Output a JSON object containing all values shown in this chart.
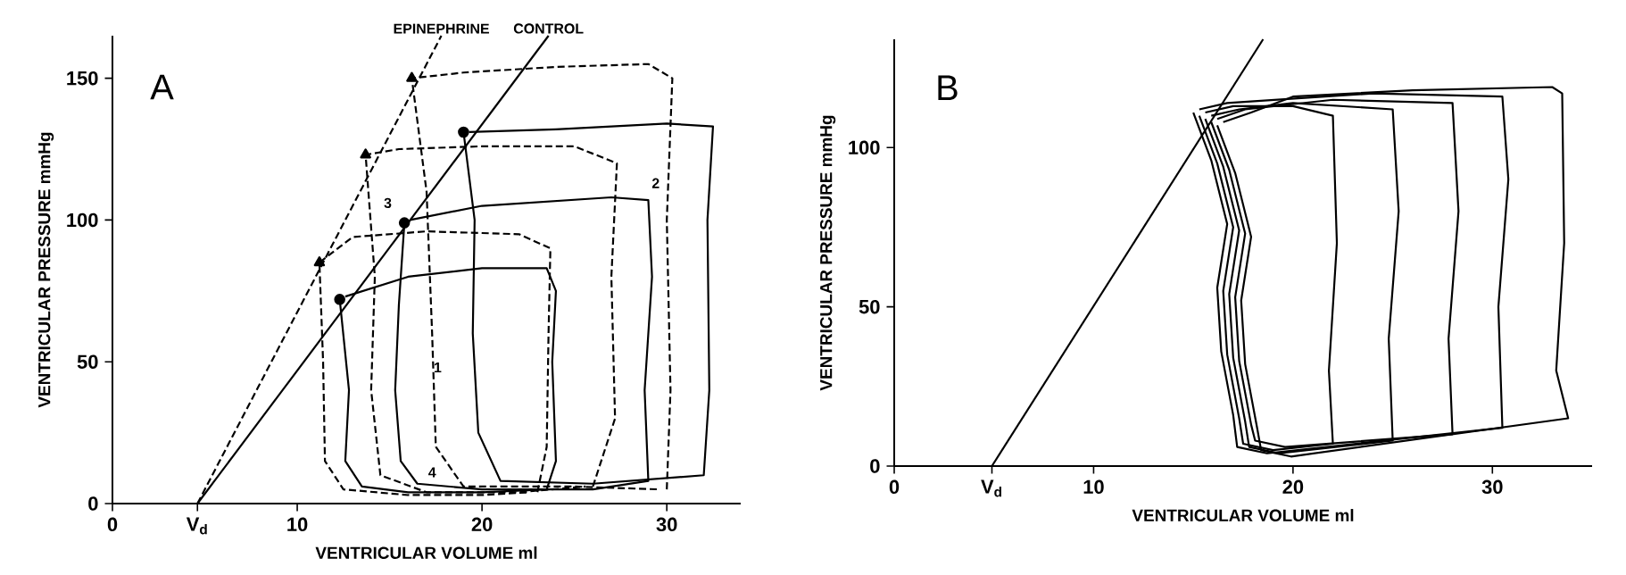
{
  "chart_data": [
    {
      "type": "line",
      "xlabel": "VENTRICULAR  VOLUME   ml",
      "ylabel": "VENTRICULAR  PRESSURE  mmHg",
      "xlim": [
        0,
        34
      ],
      "ylim": [
        0,
        165
      ],
      "xticks": [
        0,
        {
          "value": 4.6,
          "label": "V$_{d}$"
        },
        10,
        20,
        30
      ],
      "yticks": [
        0,
        50,
        100,
        150
      ],
      "annotations": [
        "A",
        {
          "text": "EPINEPHRINE",
          "x": 17.8,
          "y": 165
        },
        {
          "text": "CONTROL",
          "x": 23.6,
          "y": 165
        },
        "1",
        "2",
        "3",
        "4"
      ],
      "series": [
        {
          "type": "line",
          "color": "#000000",
          "line_style": "solid",
          "marker": "none",
          "x": [
            4.6,
            23.6
          ],
          "values": [
            0,
            165
          ]
        },
        {
          "type": "line",
          "color": "#000000",
          "line_style": "dashed",
          "marker": "none",
          "x": [
            4.6,
            17.8
          ],
          "values": [
            0,
            165
          ]
        },
        {
          "type": "line",
          "color": "#000000",
          "line_style": "solid",
          "marker": "none",
          "x": [
            12.3,
            12.8,
            12.6,
            13.5,
            16,
            20,
            23.5,
            24,
            23.8,
            24,
            23.5,
            20,
            16,
            12.6
          ],
          "values": [
            72,
            40,
            15,
            6,
            4,
            4,
            5,
            15,
            50,
            75,
            83,
            83,
            80,
            73
          ]
        },
        {
          "type": "line",
          "color": "#000000",
          "line_style": "solid",
          "marker": "none",
          "x": [
            15.8,
            15.5,
            15.3,
            15.6,
            16.5,
            20,
            26,
            29,
            28.8,
            29.2,
            29,
            27,
            20,
            16.1
          ],
          "values": [
            99,
            70,
            40,
            15,
            7,
            5,
            5,
            8,
            40,
            80,
            107,
            108,
            105,
            100
          ]
        },
        {
          "type": "line",
          "color": "#000000",
          "line_style": "solid",
          "marker": "none",
          "x": [
            19,
            19.6,
            19.5,
            19.8,
            21,
            26,
            32,
            32.3,
            32.2,
            32.5,
            30,
            24,
            19.3
          ],
          "values": [
            131,
            100,
            60,
            25,
            8,
            7,
            10,
            40,
            100,
            133,
            134,
            132,
            131
          ]
        },
        {
          "type": "line",
          "color": "#000000",
          "line_style": "dashed",
          "marker": "none",
          "x": [
            23,
            23.5,
            23.6,
            23.7,
            22,
            17,
            13,
            11.2,
            11.4,
            11.5,
            12.5,
            16,
            20,
            22.6
          ],
          "values": [
            4,
            20,
            60,
            90,
            95,
            96,
            94,
            85,
            50,
            15,
            5,
            3,
            3,
            4
          ]
        },
        {
          "type": "line",
          "color": "#000000",
          "line_style": "dashed",
          "marker": "none",
          "x": [
            26,
            27.2,
            27,
            27.3,
            25,
            20,
            15.5,
            13.7,
            14.2,
            14,
            14.5,
            17,
            22,
            25.6
          ],
          "values": [
            6,
            30,
            80,
            120,
            126,
            126,
            125,
            123,
            80,
            40,
            10,
            4,
            4,
            6
          ]
        },
        {
          "type": "line",
          "color": "#000000",
          "line_style": "dashed",
          "marker": "none",
          "x": [
            30,
            30.2,
            30,
            30.3,
            29,
            24,
            19,
            16.2,
            17,
            17.3,
            17.5,
            19,
            25,
            29.6
          ],
          "values": [
            5,
            40,
            100,
            150,
            155,
            154,
            152,
            150,
            110,
            60,
            20,
            6,
            6,
            5
          ]
        },
        {
          "type": "scatter",
          "color": "#000000",
          "marker": "circle",
          "x": [
            12.3,
            15.8,
            19
          ],
          "values": [
            72,
            99,
            131
          ]
        },
        {
          "type": "scatter",
          "color": "#000000",
          "marker": "triangle",
          "x": [
            11.2,
            13.7,
            16.2
          ],
          "values": [
            85,
            123,
            150
          ]
        }
      ]
    },
    {
      "type": "line",
      "xlabel": "VENTRICULAR  VOLUME   ml",
      "ylabel": "VENTRICULAR  PRESSURE  mmHg",
      "xlim": [
        0,
        35
      ],
      "ylim": [
        0,
        134
      ],
      "xticks": [
        0,
        {
          "value": 4.9,
          "label": "V$_{d}$"
        },
        10,
        20,
        30
      ],
      "yticks": [
        0,
        50,
        100
      ],
      "annotations": [
        "B"
      ],
      "series": [
        {
          "type": "line",
          "color": "#000000",
          "line_style": "solid",
          "marker": "none",
          "x": [
            4.9,
            18.5
          ],
          "values": [
            0,
            134
          ]
        },
        {
          "type": "line",
          "color": "#000000",
          "line_style": "solid",
          "marker": "none",
          "x": [
            15.3,
            16.2,
            17,
            16.5,
            16.7,
            17.3,
            17.5,
            19,
            22,
            21.8,
            22.2,
            22,
            20,
            17,
            15.6
          ],
          "values": [
            110,
            95,
            75,
            55,
            35,
            15,
            7,
            5,
            7,
            30,
            70,
            110,
            113,
            113,
            111
          ]
        },
        {
          "type": "line",
          "color": "#000000",
          "line_style": "solid",
          "marker": "none",
          "x": [
            15.6,
            16.5,
            17.3,
            16.8,
            17,
            17.6,
            17.8,
            19.3,
            25,
            24.8,
            25.3,
            25,
            20,
            17.3,
            15.9
          ],
          "values": [
            109,
            94,
            74,
            54,
            34,
            14,
            6,
            4,
            8,
            40,
            80,
            112,
            114,
            112,
            110
          ]
        },
        {
          "type": "line",
          "color": "#000000",
          "line_style": "solid",
          "marker": "none",
          "x": [
            15.9,
            16.8,
            17.6,
            17.1,
            17.3,
            17.9,
            18.1,
            19.6,
            28,
            27.8,
            28.3,
            28,
            22,
            17.6,
            16.2
          ],
          "values": [
            108,
            93,
            73,
            53,
            33,
            13,
            8,
            6,
            10,
            40,
            80,
            114,
            115,
            112,
            109
          ]
        },
        {
          "type": "line",
          "color": "#000000",
          "line_style": "solid",
          "marker": "none",
          "x": [
            15,
            15.9,
            16.7,
            16.2,
            16.4,
            17,
            17.2,
            18.7,
            30.5,
            30.3,
            30.8,
            30.5,
            24,
            16.7,
            15.3
          ],
          "values": [
            111,
            96,
            76,
            56,
            36,
            16,
            6,
            4,
            12,
            50,
            90,
            116,
            117,
            114,
            112
          ]
        },
        {
          "type": "line",
          "color": "#000000",
          "line_style": "solid",
          "marker": "none",
          "x": [
            16.2,
            17.1,
            17.9,
            17.4,
            17.6,
            18.2,
            18.4,
            19.9,
            33.8,
            33.2,
            33.6,
            33.5,
            33,
            26,
            20,
            17.9,
            16.5
          ],
          "values": [
            107,
            92,
            72,
            52,
            32,
            12,
            5,
            3,
            15,
            30,
            70,
            117,
            119,
            118,
            116,
            111,
            108
          ]
        }
      ]
    }
  ]
}
